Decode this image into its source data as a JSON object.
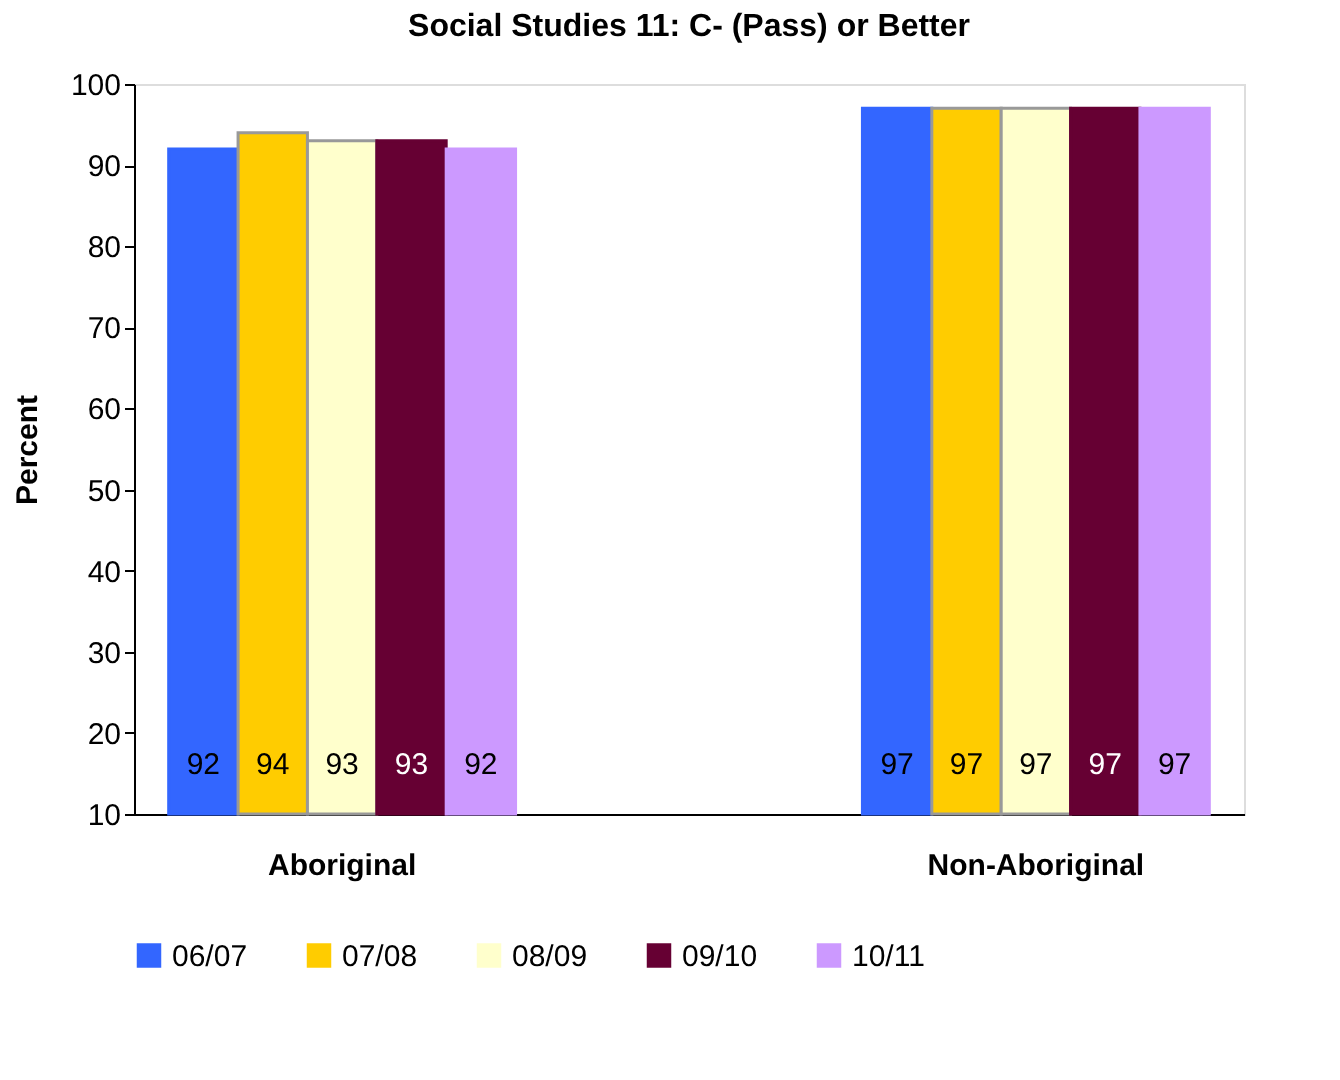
{
  "chart_data": {
    "type": "bar",
    "title": "Social Studies 11: C- (Pass) or Better",
    "ylabel": "Percent",
    "categories": [
      "Aboriginal",
      "Non-Aboriginal"
    ],
    "series": [
      {
        "name": "06/07",
        "color": "#3366ff",
        "values": [
          92,
          97
        ]
      },
      {
        "name": "07/08",
        "color": "#ffcc00",
        "values": [
          94,
          97
        ]
      },
      {
        "name": "08/09",
        "color": "#ffffcc",
        "values": [
          93,
          97
        ]
      },
      {
        "name": "09/10",
        "color": "#660033",
        "values": [
          93,
          97
        ]
      },
      {
        "name": "10/11",
        "color": "#cc99ff",
        "values": [
          92,
          97
        ]
      }
    ],
    "ylim": [
      10,
      100
    ],
    "yticks": [
      10,
      20,
      30,
      40,
      50,
      60,
      70,
      80,
      90,
      100
    ],
    "grid": false,
    "legend": "bottom",
    "data_labels": true
  }
}
